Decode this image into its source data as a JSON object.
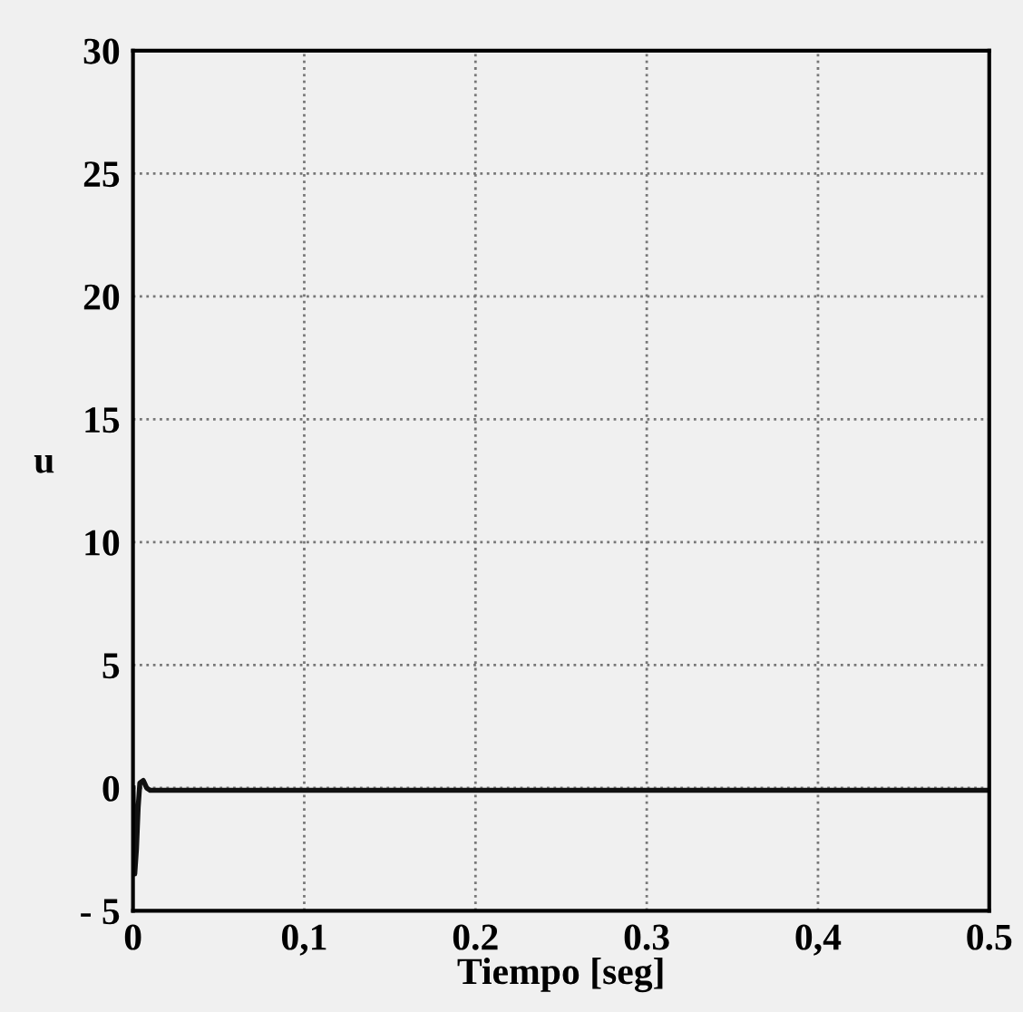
{
  "chart_data": {
    "type": "line",
    "xlabel": "Tiempo [seg]",
    "ylabel": "u",
    "x": [
      0,
      0.001,
      0.002,
      0.003,
      0.004,
      0.006,
      0.008,
      0.01,
      0.1,
      0.2,
      0.3,
      0.4,
      0.5
    ],
    "series": [
      {
        "color": "#111111",
        "values": [
          0,
          -3.5,
          -2.5,
          -0.8,
          0.2,
          0.3,
          0,
          -0.1,
          -0.1,
          -0.1,
          -0.1,
          -0.1,
          -0.1
        ]
      }
    ],
    "xlim": [
      0,
      0.5
    ],
    "ylim": [
      -5,
      30
    ],
    "xticks": [
      0,
      {
        "value": 0.1,
        "label": "0,1"
      },
      0.2,
      0.3,
      {
        "value": 0.4,
        "label": "0,4"
      },
      0.5
    ],
    "yticks": [
      {
        "value": -5,
        "label": "- 5"
      },
      0,
      5,
      10,
      15,
      20,
      25,
      30
    ],
    "grid": true,
    "line_style": "solid"
  }
}
